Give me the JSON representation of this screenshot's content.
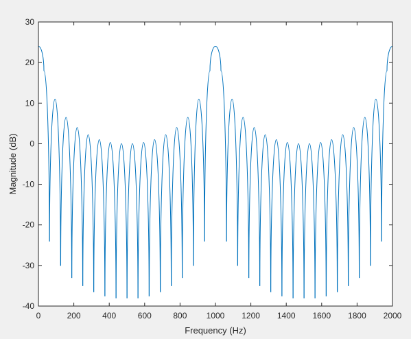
{
  "chart_data": {
    "type": "line",
    "title": "",
    "xlabel": "Frequency (Hz)",
    "ylabel": "Magnitude (dB)",
    "xlim": [
      0,
      2000
    ],
    "ylim": [
      -40,
      30
    ],
    "x_ticks": [
      0,
      200,
      400,
      600,
      800,
      1000,
      1200,
      1400,
      1600,
      1800,
      2000
    ],
    "y_ticks": [
      -40,
      -30,
      -20,
      -10,
      0,
      10,
      20,
      30
    ],
    "grid": false,
    "legend": "none",
    "line_color": "#0072bd",
    "series": [
      {
        "x": [
          0,
          31,
          62,
          63,
          94,
          125,
          126,
          156,
          188,
          189,
          219,
          250,
          251,
          281,
          312,
          313,
          344,
          375,
          376,
          406,
          438,
          439,
          469,
          500,
          501,
          531,
          562,
          563,
          594,
          625,
          626,
          656,
          688,
          689,
          719,
          750,
          751,
          781,
          812,
          813,
          844,
          875,
          876,
          906,
          938,
          939,
          969,
          1000,
          1031,
          1062,
          1063,
          1094,
          1125,
          1126,
          1156,
          1188,
          1189,
          1219,
          1250,
          1251,
          1281,
          1312,
          1313,
          1344,
          1375,
          1376,
          1406,
          1438,
          1439,
          1469,
          1500,
          1501,
          1531,
          1562,
          1563,
          1594,
          1625,
          1626,
          1656,
          1688,
          1689,
          1719,
          1750,
          1751,
          1781,
          1812,
          1813,
          1844,
          1875,
          1876,
          1906,
          1938,
          1939,
          1969,
          2000
        ],
        "y": [
          24,
          18,
          -24,
          -24,
          11,
          -30,
          -30,
          6.5,
          -33,
          -33,
          4,
          -35,
          -35,
          2.2,
          -36.5,
          -36.5,
          1,
          -37.5,
          -37.5,
          0.3,
          -38,
          -38,
          0,
          -38,
          -38,
          0,
          -38,
          -38,
          0.3,
          -37.5,
          -37.5,
          1,
          -36.5,
          -36.5,
          2.2,
          -35,
          -35,
          4,
          -33,
          -33,
          6.5,
          -30,
          -30,
          11,
          -24,
          -24,
          18,
          24,
          18,
          -24,
          -24,
          11,
          -30,
          -30,
          6.5,
          -33,
          -33,
          4,
          -35,
          -35,
          2.2,
          -36.5,
          -36.5,
          1,
          -37.5,
          -37.5,
          0.3,
          -38,
          -38,
          0,
          -38,
          -38,
          0,
          -38,
          -38,
          0.3,
          -37.5,
          -37.5,
          1,
          -36.5,
          -36.5,
          2.2,
          -35,
          -35,
          4,
          -33,
          -33,
          6.5,
          -30,
          -30,
          11,
          -24,
          -24,
          18,
          24
        ]
      }
    ]
  }
}
